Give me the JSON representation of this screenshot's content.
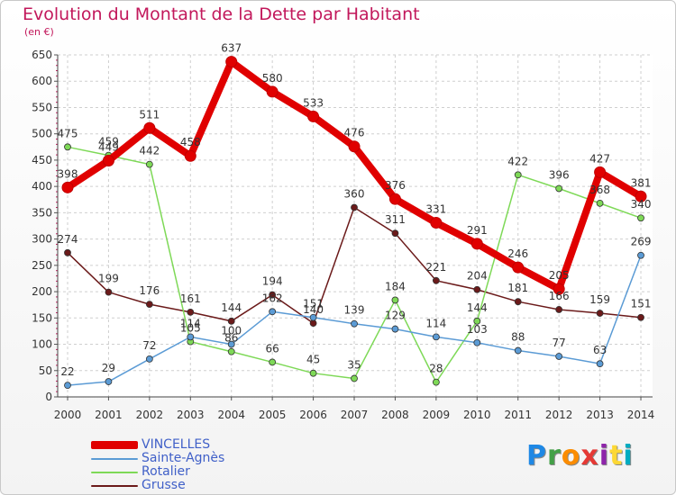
{
  "chart_data": {
    "type": "line",
    "title": "Evolution du Montant de la Dette par Habitant",
    "subtitle": "(en €)",
    "xlabel": "",
    "ylabel": "",
    "x": [
      "2000",
      "2001",
      "2002",
      "2003",
      "2004",
      "2005",
      "2006",
      "2007",
      "2008",
      "2009",
      "2010",
      "2011",
      "2012",
      "2013",
      "2014"
    ],
    "yticks": [
      "0",
      "50",
      "100",
      "150",
      "200",
      "250",
      "300",
      "350",
      "400",
      "450",
      "500",
      "550",
      "600",
      "650"
    ],
    "ylim": [
      0,
      650
    ],
    "grid": true,
    "legend_position": "bottom-left",
    "series": [
      {
        "name": "VINCELLES",
        "color": "#e00000",
        "values": [
          398,
          449,
          511,
          458,
          637,
          580,
          533,
          476,
          376,
          331,
          291,
          246,
          205,
          427,
          381
        ],
        "labels": [
          "398",
          "449",
          "511",
          "458",
          "637",
          "580",
          "533",
          "476",
          "376",
          "331",
          "291",
          "246",
          "205",
          "427",
          "381"
        ]
      },
      {
        "name": "Sainte-Agnès",
        "color": "#5b9bd5",
        "values": [
          22,
          29,
          72,
          114,
          100,
          162,
          151,
          139,
          129,
          114,
          103,
          88,
          77,
          63,
          269
        ],
        "labels": [
          "22",
          "29",
          "72",
          "114",
          "100",
          "162",
          "151",
          "139",
          "129",
          "114",
          "103",
          "88",
          "77",
          "63",
          "269"
        ]
      },
      {
        "name": "Rotalier",
        "color": "#7ed957",
        "values": [
          475,
          459,
          442,
          105,
          86,
          66,
          45,
          35,
          184,
          28,
          144,
          422,
          396,
          368,
          340
        ],
        "labels": [
          "475",
          "459",
          "442",
          "105",
          "86",
          "66",
          "45",
          "35",
          "184",
          "28",
          "144",
          "422",
          "396",
          "368",
          "340"
        ]
      },
      {
        "name": "Grusse",
        "color": "#6b1a1a",
        "values": [
          274,
          199,
          176,
          161,
          144,
          194,
          140,
          360,
          311,
          221,
          204,
          181,
          166,
          159,
          151
        ],
        "labels": [
          "274",
          "199",
          "176",
          "161",
          "144",
          "194",
          "140",
          "360",
          "311",
          "221",
          "204",
          "181",
          "166",
          "159",
          "151"
        ]
      }
    ]
  },
  "logo": {
    "letters": [
      "P",
      "r",
      "o",
      "x",
      "i",
      "t",
      "i"
    ],
    "colors": [
      "#1e88e5",
      "#43a047",
      "#fb8c00",
      "#e53935",
      "#8e24aa",
      "#fdd835",
      "#00acc1"
    ]
  }
}
